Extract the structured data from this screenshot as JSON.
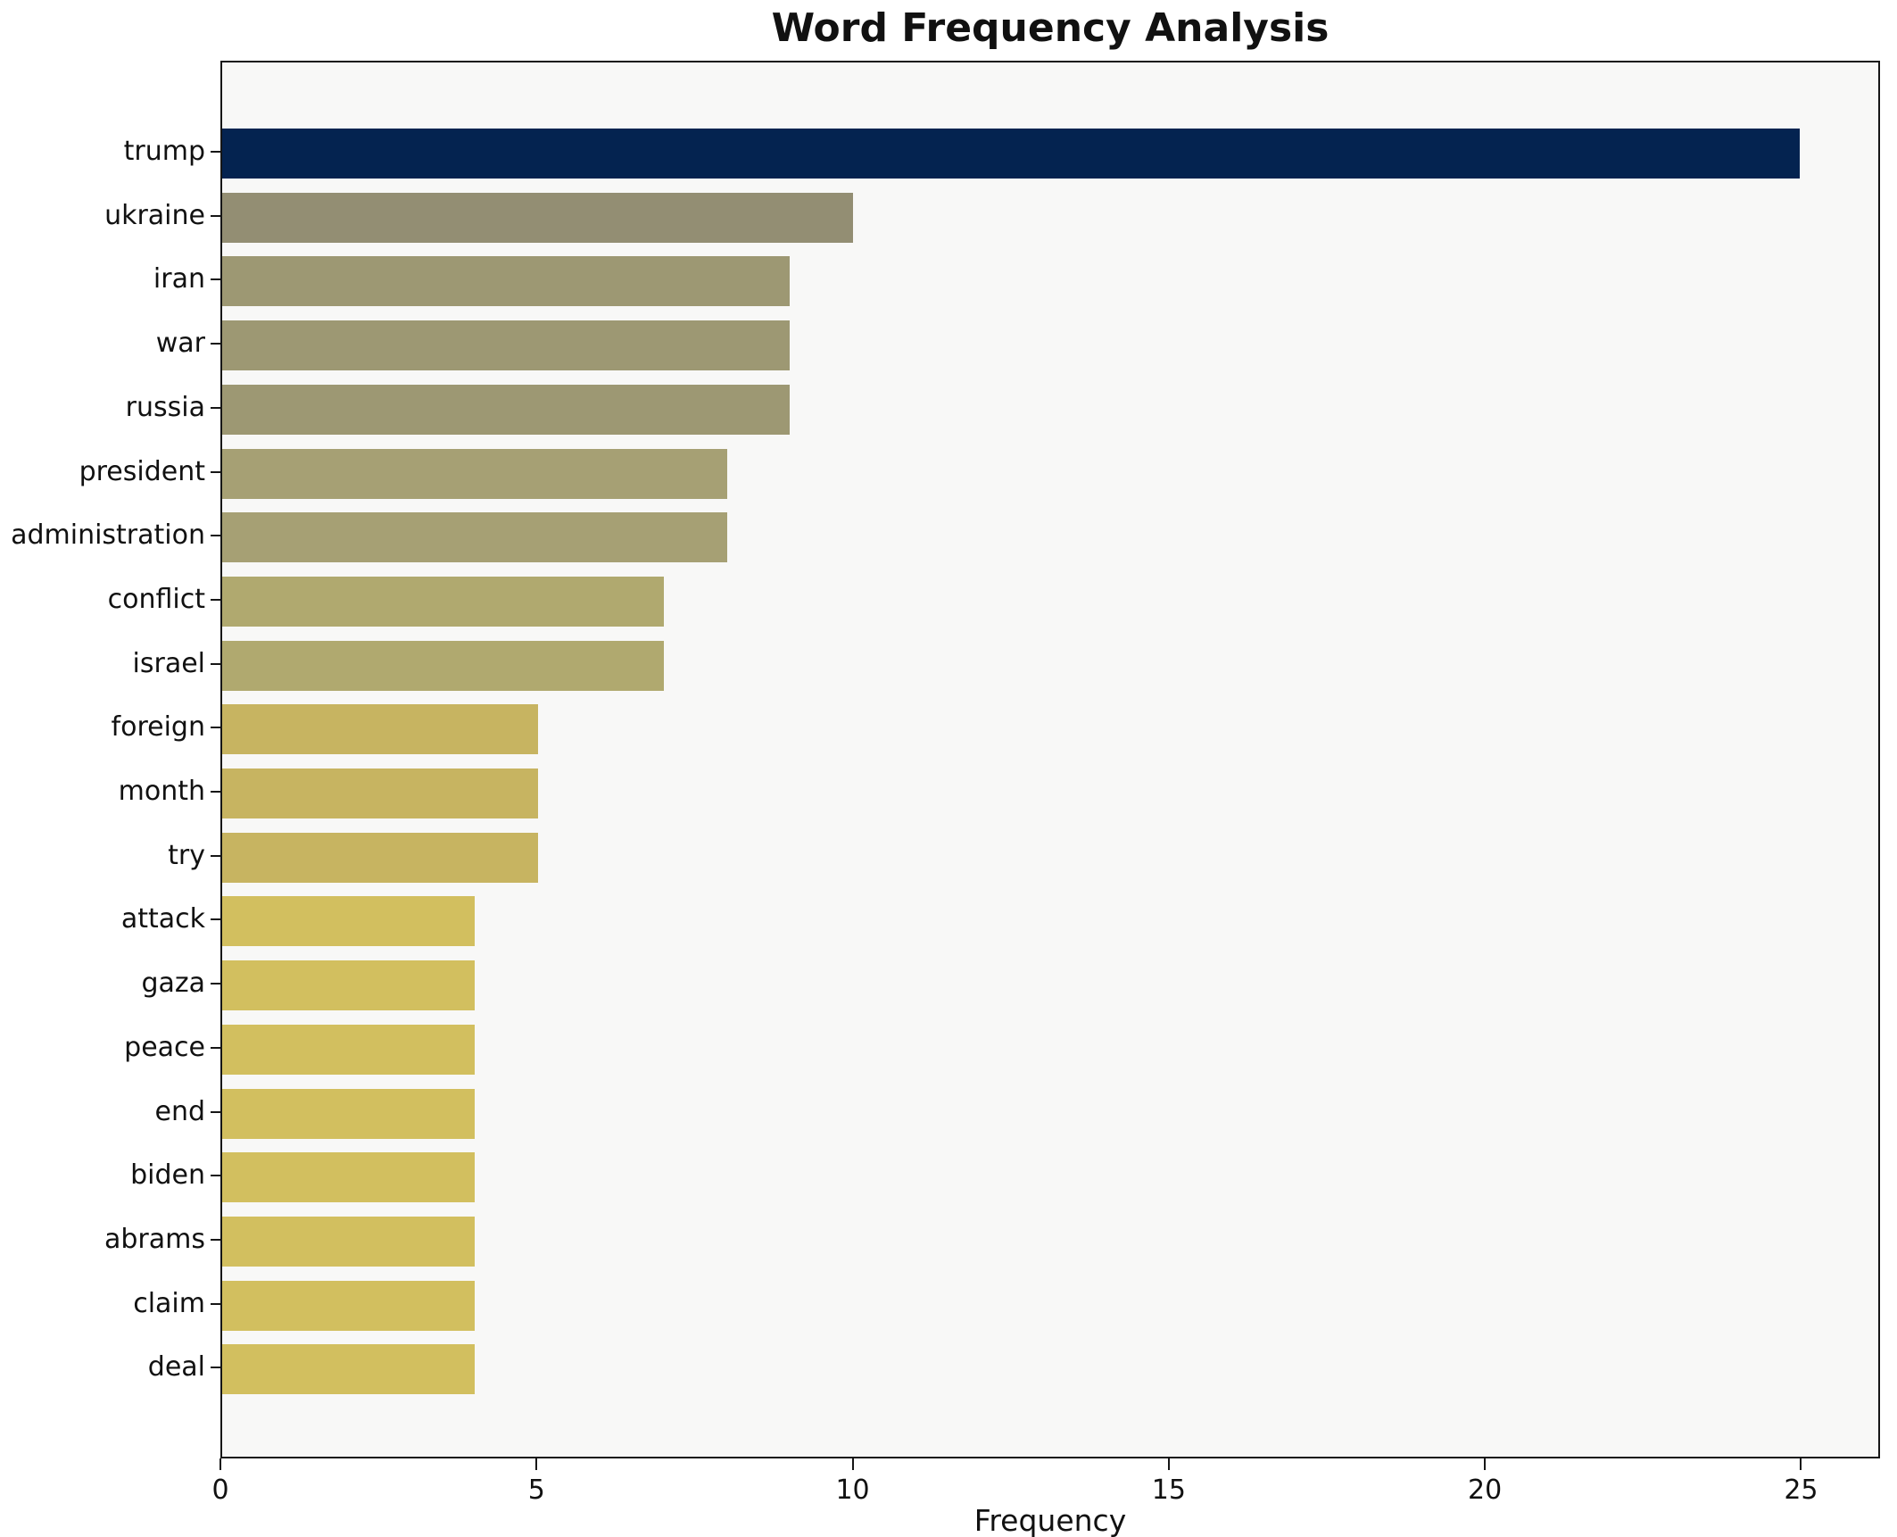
{
  "chart_data": {
    "type": "bar",
    "orientation": "horizontal",
    "title": "Word Frequency Analysis",
    "xlabel": "Frequency",
    "ylabel": "",
    "categories": [
      "trump",
      "ukraine",
      "iran",
      "war",
      "russia",
      "president",
      "administration",
      "conflict",
      "israel",
      "foreign",
      "month",
      "try",
      "attack",
      "gaza",
      "peace",
      "end",
      "biden",
      "abrams",
      "claim",
      "deal"
    ],
    "values": [
      25,
      10,
      9,
      9,
      9,
      8,
      8,
      7,
      7,
      5,
      5,
      5,
      4,
      4,
      4,
      4,
      4,
      4,
      4,
      4
    ],
    "bar_colors": [
      "#042350",
      "#938e73",
      "#9d9873",
      "#9d9873",
      "#9d9873",
      "#a6a074",
      "#a6a074",
      "#b0a96f",
      "#b0a96f",
      "#c7b461",
      "#c7b461",
      "#c7b461",
      "#d2bf5f",
      "#d2bf5f",
      "#d2bf5f",
      "#d2bf5f",
      "#d2bf5f",
      "#d2bf5f",
      "#d2bf5f",
      "#d2bf5f"
    ],
    "xticks": [
      0,
      5,
      10,
      15,
      20,
      25
    ],
    "xlim": [
      0,
      26.25
    ],
    "grid": false,
    "legend_position": "none",
    "plot_background": "#f8f8f7",
    "spine_color": "#161616",
    "figure_background": "#ffffff"
  }
}
